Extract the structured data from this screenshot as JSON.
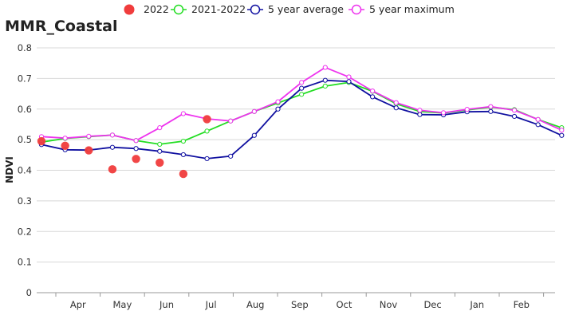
{
  "chart_data": {
    "type": "line",
    "title": "MMR_Coastal",
    "ylabel": "NDVI",
    "xlabel": "",
    "ylim": [
      0,
      0.8
    ],
    "yticks": [
      "0",
      "0.1",
      "0.2",
      "0.3",
      "0.4",
      "0.5",
      "0.6",
      "0.7",
      "0.8"
    ],
    "month_labels": [
      "Apr",
      "May",
      "Jun",
      "Jul",
      "Aug",
      "Sep",
      "Oct",
      "Nov",
      "Dec",
      "Jan",
      "Feb"
    ],
    "grid": true,
    "legend_position": "top",
    "series": [
      {
        "name": "2022",
        "style": "dots",
        "color": "#f03c3c",
        "values": [
          0.495,
          0.48,
          0.465,
          0.403,
          0.437,
          0.425,
          0.388,
          0.567
        ]
      },
      {
        "name": "2021-2022",
        "style": "line",
        "color": "#22dd22",
        "values": [
          0.492,
          0.504,
          0.51,
          0.515,
          0.497,
          0.485,
          0.495,
          0.528,
          0.561,
          0.592,
          0.62,
          0.648,
          0.675,
          0.687,
          0.658,
          0.617,
          0.592,
          0.587,
          0.597,
          0.606,
          0.598,
          0.566,
          0.539
        ]
      },
      {
        "name": "5 year average",
        "style": "line",
        "color": "#1010a0",
        "values": [
          0.484,
          0.467,
          0.466,
          0.475,
          0.471,
          0.462,
          0.451,
          0.438,
          0.446,
          0.514,
          0.6,
          0.668,
          0.694,
          0.69,
          0.64,
          0.604,
          0.582,
          0.581,
          0.591,
          0.592,
          0.576,
          0.549,
          0.514
        ]
      },
      {
        "name": "5 year maximum",
        "style": "line",
        "color": "#ee33ee",
        "values": [
          0.51,
          0.505,
          0.511,
          0.515,
          0.497,
          0.539,
          0.585,
          0.568,
          0.561,
          0.592,
          0.624,
          0.687,
          0.736,
          0.705,
          0.659,
          0.621,
          0.596,
          0.588,
          0.599,
          0.608,
          0.596,
          0.566,
          0.531
        ]
      }
    ]
  }
}
